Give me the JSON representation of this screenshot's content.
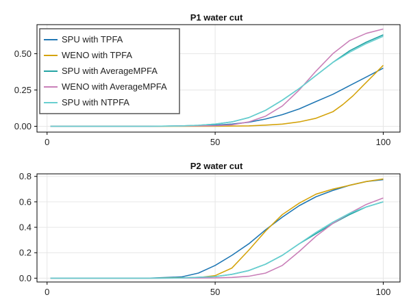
{
  "colors": {
    "spu_tpfa": "#1f77b4",
    "weno_tpfa": "#d4a30b",
    "spu_avg": "#22a3a3",
    "weno_avg": "#c97fb8",
    "spu_ntpfa": "#67cfd0"
  },
  "chart_data": [
    {
      "type": "line",
      "title": "P1 water cut",
      "xlim": [
        -3,
        105
      ],
      "ylim": [
        -0.04,
        0.7
      ],
      "xticks": [
        0,
        50,
        100
      ],
      "yticks": [
        0.0,
        0.25,
        0.5
      ],
      "xtick_labels": [
        "0",
        "50",
        "100"
      ],
      "ytick_labels": [
        "0.00",
        "0.25",
        "0.50"
      ],
      "grid": true,
      "legend": "top-left",
      "series": [
        {
          "name": "SPU with TPFA",
          "color_key": "spu_tpfa",
          "x": [
            1,
            30,
            40,
            45,
            50,
            55,
            60,
            65,
            70,
            75,
            80,
            85,
            90,
            95,
            100
          ],
          "y": [
            0.0,
            0.0,
            0.002,
            0.004,
            0.008,
            0.015,
            0.028,
            0.05,
            0.08,
            0.12,
            0.17,
            0.22,
            0.28,
            0.34,
            0.4
          ]
        },
        {
          "name": "WENO with TPFA",
          "color_key": "weno_tpfa",
          "x": [
            1,
            30,
            50,
            60,
            65,
            70,
            75,
            80,
            85,
            88,
            91,
            94,
            97,
            100
          ],
          "y": [
            0.0,
            0.0,
            0.0,
            0.003,
            0.008,
            0.015,
            0.03,
            0.055,
            0.1,
            0.15,
            0.21,
            0.28,
            0.35,
            0.42
          ]
        },
        {
          "name": "SPU with AverageMPFA",
          "color_key": "spu_avg",
          "x": [
            1,
            30,
            40,
            45,
            50,
            55,
            60,
            65,
            70,
            75,
            80,
            85,
            90,
            95,
            100
          ],
          "y": [
            0.0,
            0.0,
            0.003,
            0.007,
            0.015,
            0.03,
            0.06,
            0.11,
            0.18,
            0.26,
            0.35,
            0.44,
            0.52,
            0.58,
            0.63
          ]
        },
        {
          "name": "WENO with AverageMPFA",
          "color_key": "weno_avg",
          "x": [
            1,
            30,
            50,
            55,
            60,
            65,
            70,
            75,
            80,
            85,
            90,
            95,
            100
          ],
          "y": [
            0.0,
            0.0,
            0.004,
            0.01,
            0.03,
            0.07,
            0.14,
            0.25,
            0.38,
            0.5,
            0.59,
            0.64,
            0.67
          ]
        },
        {
          "name": "SPU with NTPFA",
          "color_key": "spu_ntpfa",
          "x": [
            1,
            30,
            40,
            45,
            50,
            55,
            60,
            65,
            70,
            75,
            80,
            85,
            90,
            95,
            100
          ],
          "y": [
            0.0,
            0.0,
            0.003,
            0.007,
            0.015,
            0.03,
            0.06,
            0.11,
            0.18,
            0.26,
            0.35,
            0.44,
            0.51,
            0.57,
            0.62
          ]
        }
      ]
    },
    {
      "type": "line",
      "title": "P2 water cut",
      "xlim": [
        -3,
        105
      ],
      "ylim": [
        -0.03,
        0.82
      ],
      "xticks": [
        0,
        50,
        100
      ],
      "yticks": [
        0.0,
        0.2,
        0.4,
        0.6,
        0.8
      ],
      "xtick_labels": [
        "0",
        "50",
        "100"
      ],
      "ytick_labels": [
        "0.0",
        "0.2",
        "0.4",
        "0.6",
        "0.8"
      ],
      "grid": true,
      "series": [
        {
          "name": "SPU with TPFA",
          "color_key": "spu_tpfa",
          "x": [
            1,
            30,
            40,
            45,
            50,
            55,
            60,
            65,
            70,
            75,
            80,
            85,
            90,
            95,
            100
          ],
          "y": [
            0.0,
            0.0,
            0.01,
            0.04,
            0.1,
            0.18,
            0.27,
            0.38,
            0.48,
            0.57,
            0.64,
            0.69,
            0.73,
            0.76,
            0.775
          ]
        },
        {
          "name": "WENO with TPFA",
          "color_key": "weno_tpfa",
          "x": [
            1,
            30,
            45,
            50,
            55,
            60,
            65,
            70,
            75,
            80,
            85,
            90,
            95,
            100
          ],
          "y": [
            0.0,
            0.0,
            0.005,
            0.02,
            0.08,
            0.22,
            0.37,
            0.5,
            0.59,
            0.66,
            0.7,
            0.73,
            0.76,
            0.78
          ]
        },
        {
          "name": "SPU with AverageMPFA",
          "color_key": "spu_avg",
          "x": [
            1,
            30,
            40,
            50,
            55,
            60,
            65,
            70,
            75,
            80,
            85,
            90,
            95,
            100
          ],
          "y": [
            0.0,
            0.0,
            0.002,
            0.012,
            0.03,
            0.06,
            0.11,
            0.18,
            0.27,
            0.35,
            0.43,
            0.5,
            0.56,
            0.6
          ]
        },
        {
          "name": "WENO with AverageMPFA",
          "color_key": "weno_avg",
          "x": [
            1,
            30,
            50,
            55,
            60,
            65,
            70,
            75,
            80,
            85,
            90,
            95,
            100
          ],
          "y": [
            0.0,
            0.0,
            0.002,
            0.006,
            0.015,
            0.04,
            0.1,
            0.21,
            0.33,
            0.43,
            0.51,
            0.58,
            0.63
          ]
        },
        {
          "name": "SPU with NTPFA",
          "color_key": "spu_ntpfa",
          "x": [
            1,
            30,
            40,
            50,
            55,
            60,
            65,
            70,
            75,
            80,
            85,
            90,
            95,
            100
          ],
          "y": [
            0.0,
            0.0,
            0.002,
            0.012,
            0.03,
            0.06,
            0.11,
            0.18,
            0.27,
            0.36,
            0.44,
            0.51,
            0.56,
            0.6
          ]
        }
      ]
    }
  ]
}
